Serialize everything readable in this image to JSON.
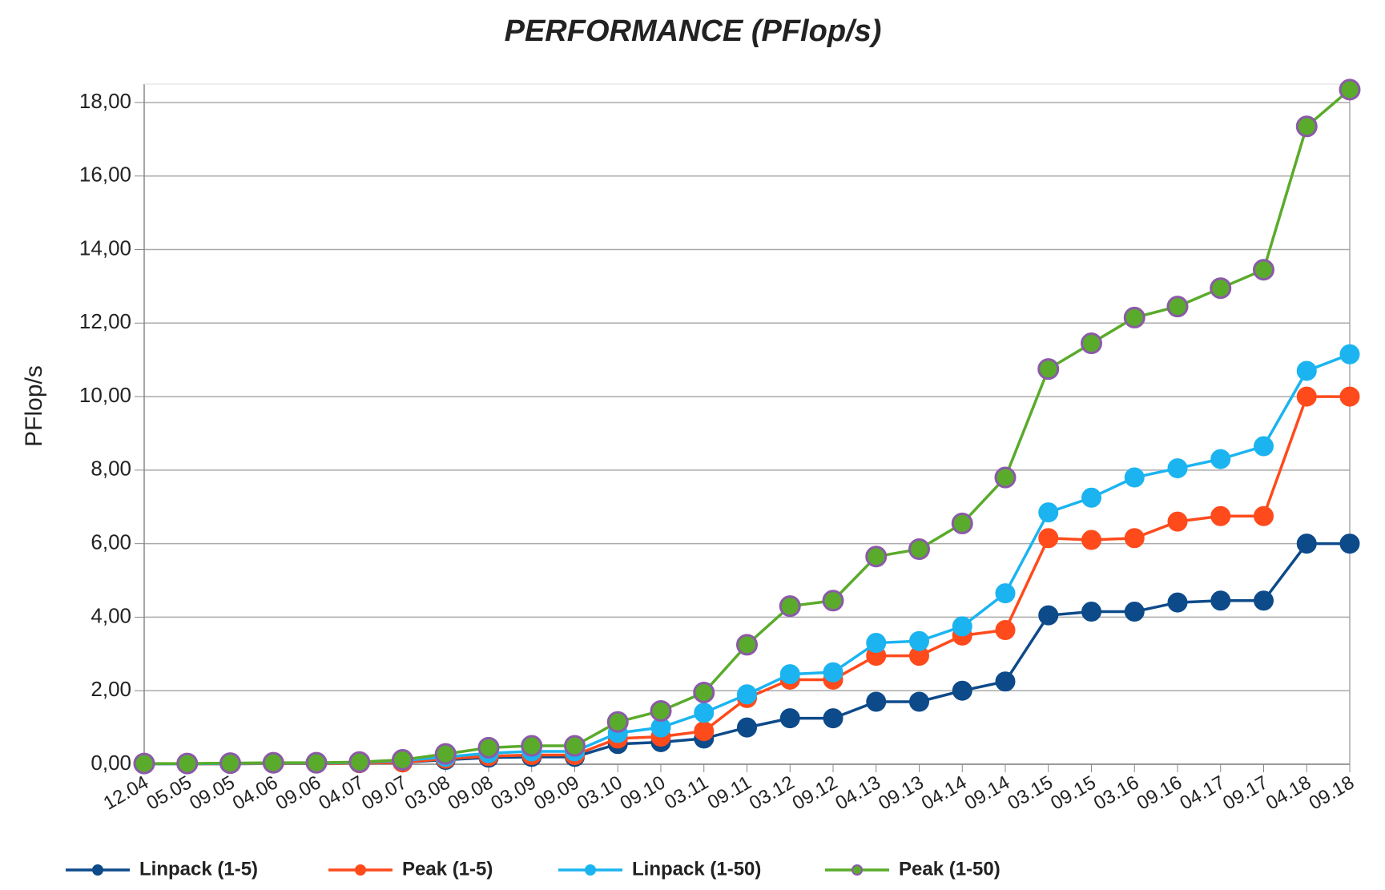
{
  "chart_data": {
    "type": "line",
    "title": "PERFORMANCE (PFlop/s)",
    "y_label": "PFlop/s",
    "categories": [
      "12.04",
      "05.05",
      "09.05",
      "04.06",
      "09.06",
      "04.07",
      "09.07",
      "03.08",
      "09.08",
      "03.09",
      "09.09",
      "03.10",
      "09.10",
      "03.11",
      "09.11",
      "03.12",
      "09.12",
      "04.13",
      "09.13",
      "04.14",
      "09.14",
      "03.15",
      "09.15",
      "03.16",
      "09.16",
      "04.17",
      "09.17",
      "04.18",
      "09.18"
    ],
    "series": [
      {
        "name": "Linpack (1-5)",
        "color": "#0d4a8a",
        "values": [
          0.01,
          0.01,
          0.01,
          0.02,
          0.02,
          0.03,
          0.05,
          0.12,
          0.18,
          0.2,
          0.2,
          0.55,
          0.6,
          0.7,
          1.0,
          1.25,
          1.25,
          1.7,
          1.7,
          2.0,
          2.25,
          4.05,
          4.15,
          4.15,
          4.4,
          4.45,
          4.45,
          6.0,
          6.0
        ]
      },
      {
        "name": "Peak (1-5)",
        "color": "#ff4a1c",
        "values": [
          0.01,
          0.01,
          0.01,
          0.02,
          0.02,
          0.03,
          0.05,
          0.15,
          0.22,
          0.25,
          0.25,
          0.7,
          0.75,
          0.9,
          1.8,
          2.3,
          2.3,
          2.95,
          2.95,
          3.5,
          3.65,
          6.15,
          6.1,
          6.15,
          6.6,
          6.75,
          6.75,
          10.0,
          10.0
        ]
      },
      {
        "name": "Linpack (1-50)",
        "color": "#1bb4f0",
        "values": [
          0.01,
          0.01,
          0.02,
          0.03,
          0.03,
          0.05,
          0.1,
          0.2,
          0.3,
          0.35,
          0.35,
          0.85,
          1.0,
          1.4,
          1.9,
          2.45,
          2.5,
          3.3,
          3.35,
          3.75,
          4.65,
          6.85,
          7.25,
          7.8,
          8.05,
          8.3,
          8.65,
          10.7,
          11.15
        ]
      },
      {
        "name": "Peak (1-50)",
        "color": "#5aab2b",
        "marker_edge": "#8b5aa8",
        "values": [
          0.02,
          0.02,
          0.03,
          0.04,
          0.04,
          0.06,
          0.12,
          0.28,
          0.45,
          0.5,
          0.5,
          1.15,
          1.45,
          1.95,
          3.25,
          4.3,
          4.45,
          5.65,
          5.85,
          6.55,
          7.8,
          10.75,
          11.45,
          12.15,
          12.45,
          12.95,
          13.45,
          17.35,
          18.35
        ]
      }
    ],
    "ylim": [
      0,
      18.5
    ],
    "yticks": [
      {
        "value": 0,
        "label": "0,00"
      },
      {
        "value": 2,
        "label": "2,00"
      },
      {
        "value": 4,
        "label": "4,00"
      },
      {
        "value": 6,
        "label": "6,00"
      },
      {
        "value": 8,
        "label": "8,00"
      },
      {
        "value": 10,
        "label": "10,00"
      },
      {
        "value": 12,
        "label": "12,00"
      },
      {
        "value": 14,
        "label": "14,00"
      },
      {
        "value": 16,
        "label": "16,00"
      },
      {
        "value": 18,
        "label": "18,00"
      }
    ],
    "grid": true,
    "legend": "bottom"
  }
}
